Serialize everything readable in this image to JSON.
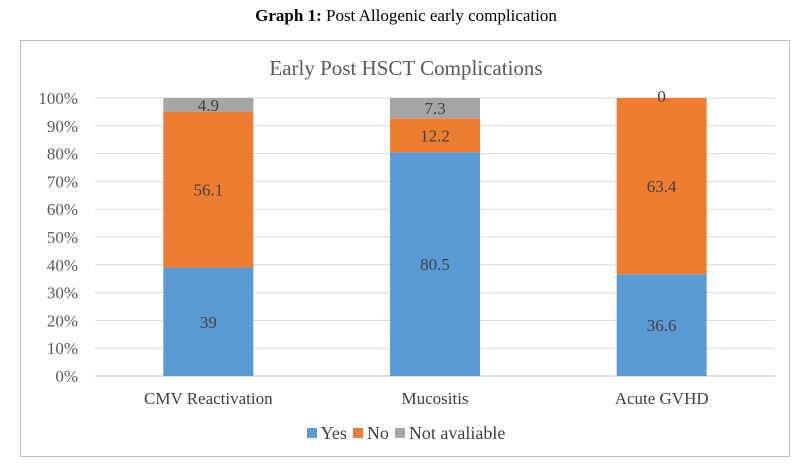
{
  "caption": {
    "prefix": "Graph 1:",
    "text": " Post Allogenic early complication"
  },
  "chart_data": {
    "type": "bar",
    "stacked": true,
    "percent": true,
    "title": "Early Post HSCT Complications",
    "categories": [
      "CMV Reactivation",
      "Mucositis",
      "Acute GVHD"
    ],
    "series": [
      {
        "name": "Yes",
        "values": [
          39,
          80.5,
          36.6
        ],
        "color": "#5b9bd5"
      },
      {
        "name": "No",
        "values": [
          56.1,
          12.2,
          63.4
        ],
        "color": "#ed7d31"
      },
      {
        "name": "Not avaliable",
        "values": [
          4.9,
          7.3,
          0
        ],
        "color": "#a5a5a5"
      }
    ],
    "ylim": [
      0,
      100
    ],
    "yticks": [
      "0%",
      "10%",
      "20%",
      "30%",
      "40%",
      "50%",
      "60%",
      "70%",
      "80%",
      "90%",
      "100%"
    ],
    "grid": true,
    "legend": "bottom"
  }
}
